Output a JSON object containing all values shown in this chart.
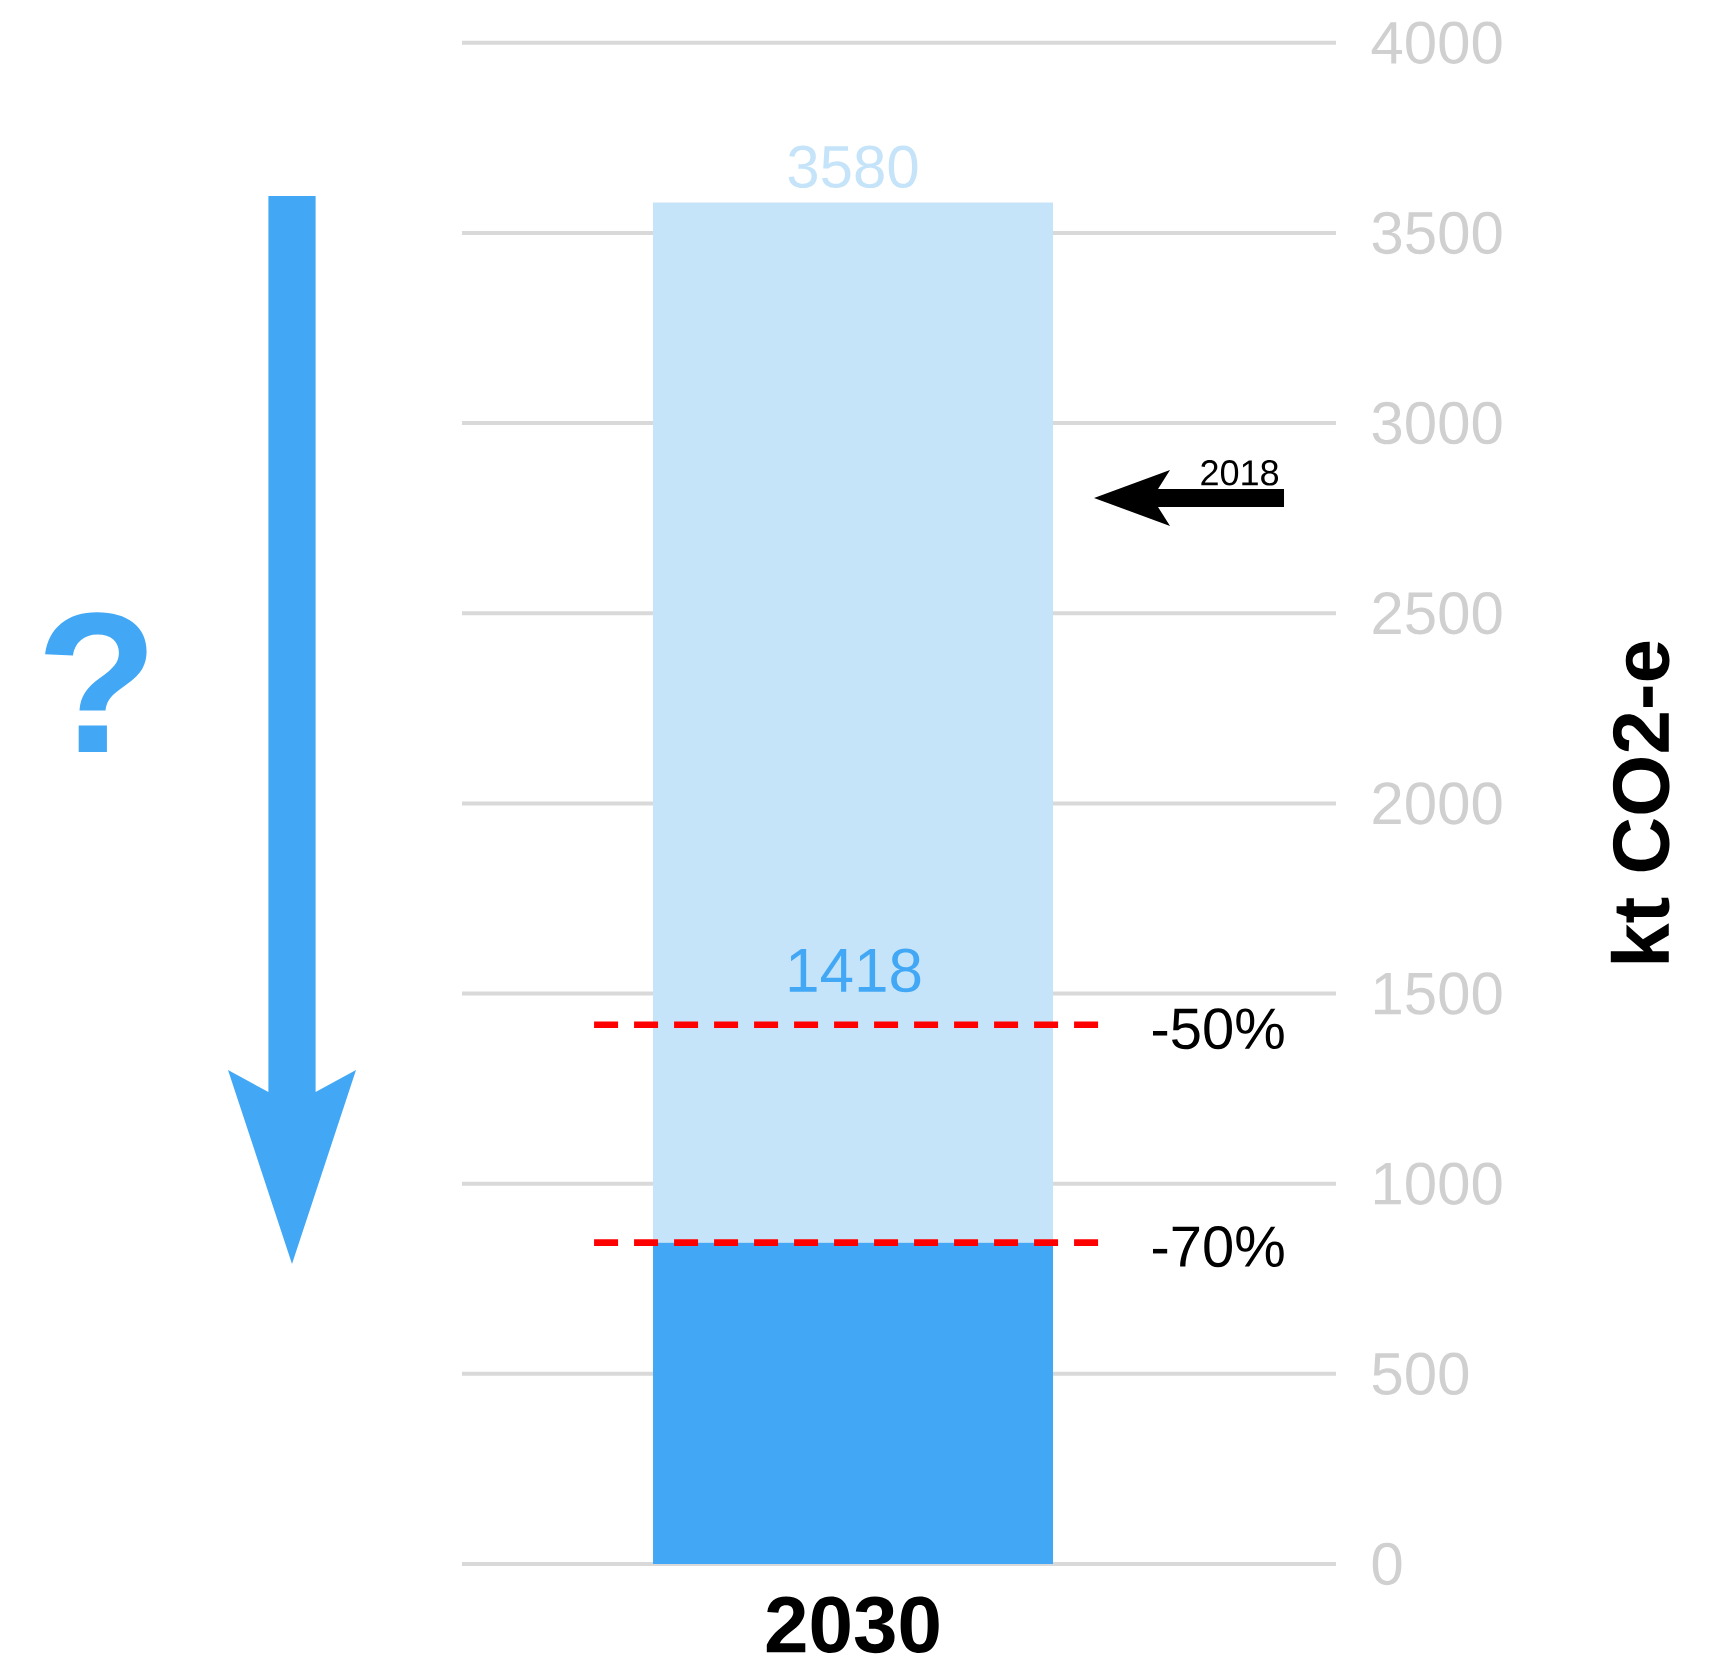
{
  "chart_data": {
    "type": "bar",
    "ylabel": "kt CO2-e",
    "categories": [
      "2030"
    ],
    "stacked": true,
    "series": [
      {
        "color": "#42a8f5",
        "values": [
          845
        ]
      },
      {
        "color": "#c5e4f9",
        "values": [
          2735
        ]
      }
    ],
    "totals": [
      "3580"
    ],
    "ylim": [
      0,
      4000
    ],
    "yticks": [
      0,
      500,
      1000,
      1500,
      2000,
      2500,
      3000,
      3500,
      4000
    ],
    "grid": "y",
    "ref_lines": [
      {
        "axis": "y",
        "value": 1418,
        "label": "1418",
        "color": "#ff0000",
        "line_style": "dashed"
      },
      {
        "axis": "y",
        "value": 845,
        "color": "#ff0000",
        "line_style": "dashed"
      }
    ],
    "annotations": [
      "-50%",
      "-70%",
      "2018",
      "?"
    ]
  }
}
